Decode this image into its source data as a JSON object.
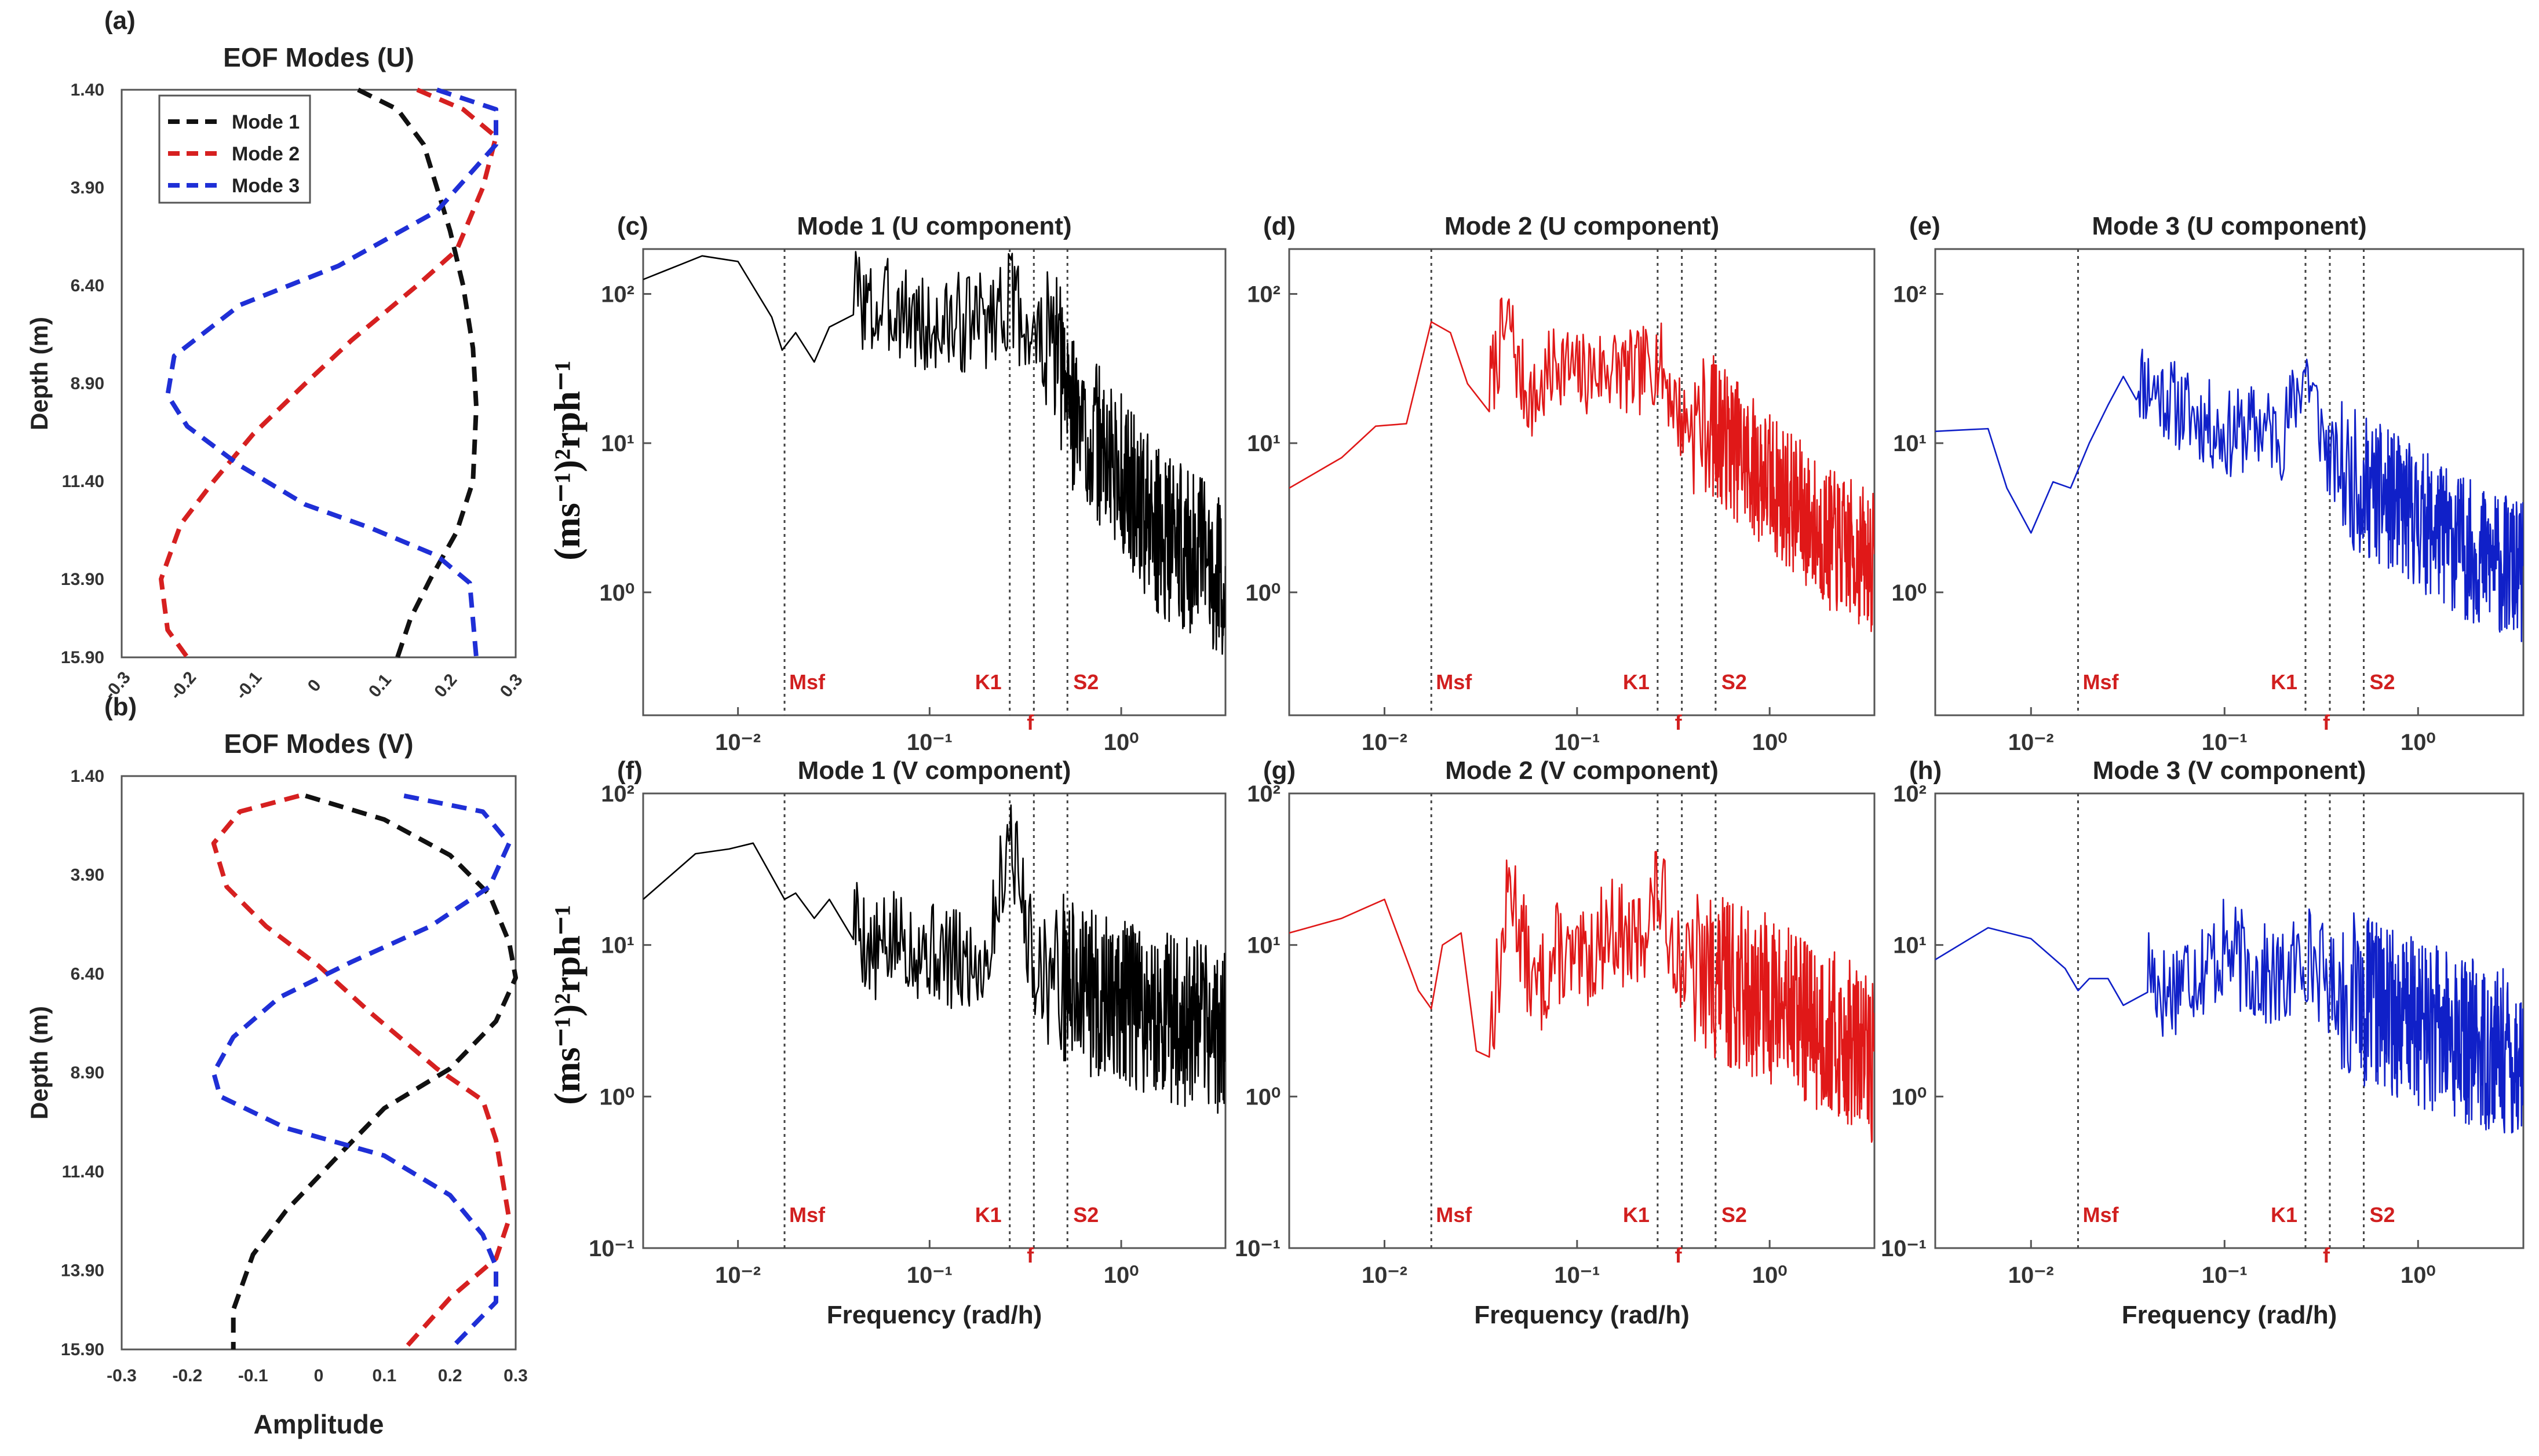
{
  "colors": {
    "mode1": "#111111",
    "mode2": "#d62020",
    "mode3": "#1f2fd6",
    "spec_mode1": "#000000",
    "spec_mode2": "#e01818",
    "spec_mode3": "#1020c8",
    "tide_label": "#d11f1f"
  },
  "ylabel_spectrum": "(ms⁻¹)²rph⁻¹",
  "tide_labels": {
    "msf": "Msf",
    "k1": "K1",
    "f": "f",
    "s2": "S2"
  },
  "chart_data": [
    {
      "id": "a",
      "panel_label": "(a)",
      "type": "line",
      "title": "EOF Modes (U)",
      "xlabel": "",
      "ylabel": "Depth (m)",
      "xlim": [
        -0.3,
        0.3
      ],
      "ylim": [
        1.4,
        15.9
      ],
      "yreversed": true,
      "x_ticks": [
        "-0.3",
        "-0.2",
        "-0.1",
        "0",
        "0.1",
        "0.2",
        "0.3"
      ],
      "y_ticks": [
        "1.40",
        "3.90",
        "6.40",
        "8.90",
        "11.40",
        "13.90",
        "15.90"
      ],
      "legend": {
        "placement": "top-left",
        "entries": [
          "Mode 1",
          "Mode 2",
          "Mode 3"
        ]
      },
      "series": [
        {
          "name": "Mode 1",
          "points": [
            [
              0.06,
              1.4
            ],
            [
              0.12,
              1.9
            ],
            [
              0.16,
              2.8
            ],
            [
              0.18,
              3.9
            ],
            [
              0.2,
              5.0
            ],
            [
              0.22,
              6.4
            ],
            [
              0.235,
              8.0
            ],
            [
              0.24,
              9.5
            ],
            [
              0.235,
              11.4
            ],
            [
              0.21,
              12.7
            ],
            [
              0.17,
              13.9
            ],
            [
              0.14,
              14.9
            ],
            [
              0.12,
              15.9
            ]
          ]
        },
        {
          "name": "Mode 2",
          "points": [
            [
              0.15,
              1.4
            ],
            [
              0.22,
              1.9
            ],
            [
              0.27,
              2.6
            ],
            [
              0.25,
              3.9
            ],
            [
              0.21,
              5.5
            ],
            [
              0.15,
              6.4
            ],
            [
              0.05,
              7.8
            ],
            [
              -0.02,
              8.9
            ],
            [
              -0.1,
              10.2
            ],
            [
              -0.16,
              11.4
            ],
            [
              -0.21,
              12.5
            ],
            [
              -0.24,
              13.9
            ],
            [
              -0.23,
              15.2
            ],
            [
              -0.2,
              15.9
            ]
          ]
        },
        {
          "name": "Mode 3",
          "points": [
            [
              0.18,
              1.4
            ],
            [
              0.27,
              1.9
            ],
            [
              0.27,
              2.8
            ],
            [
              0.18,
              4.5
            ],
            [
              0.03,
              5.9
            ],
            [
              -0.12,
              6.9
            ],
            [
              -0.22,
              8.2
            ],
            [
              -0.23,
              9.2
            ],
            [
              -0.2,
              10.0
            ],
            [
              -0.12,
              11.0
            ],
            [
              -0.02,
              12.0
            ],
            [
              0.08,
              12.6
            ],
            [
              0.18,
              13.3
            ],
            [
              0.23,
              14.0
            ],
            [
              0.24,
              15.9
            ]
          ]
        }
      ]
    },
    {
      "id": "b",
      "panel_label": "(b)",
      "type": "line",
      "title": "EOF Modes (V)",
      "xlabel": "Amplitude",
      "ylabel": "Depth (m)",
      "xlim": [
        -0.3,
        0.3
      ],
      "ylim": [
        1.4,
        15.9
      ],
      "yreversed": true,
      "x_ticks": [
        "-0.3",
        "-0.2",
        "-0.1",
        "0",
        "0.1",
        "0.2",
        "0.3"
      ],
      "y_ticks": [
        "1.40",
        "3.90",
        "6.40",
        "8.90",
        "11.40",
        "13.90",
        "15.90"
      ],
      "series": [
        {
          "name": "Mode 1",
          "points": [
            [
              -0.02,
              1.9
            ],
            [
              0.1,
              2.5
            ],
            [
              0.2,
              3.4
            ],
            [
              0.26,
              4.4
            ],
            [
              0.29,
              5.6
            ],
            [
              0.3,
              6.5
            ],
            [
              0.27,
              7.6
            ],
            [
              0.2,
              8.8
            ],
            [
              0.1,
              9.8
            ],
            [
              0.03,
              11.0
            ],
            [
              -0.05,
              12.4
            ],
            [
              -0.1,
              13.5
            ],
            [
              -0.13,
              14.9
            ],
            [
              -0.13,
              15.9
            ]
          ]
        },
        {
          "name": "Mode 2",
          "points": [
            [
              -0.03,
              1.9
            ],
            [
              -0.12,
              2.3
            ],
            [
              -0.16,
              3.1
            ],
            [
              -0.14,
              4.2
            ],
            [
              -0.08,
              5.2
            ],
            [
              0.0,
              6.2
            ],
            [
              0.08,
              7.4
            ],
            [
              0.18,
              8.8
            ],
            [
              0.25,
              9.6
            ],
            [
              0.27,
              10.6
            ],
            [
              0.28,
              11.6
            ],
            [
              0.29,
              12.6
            ],
            [
              0.27,
              13.6
            ],
            [
              0.2,
              14.6
            ],
            [
              0.13,
              15.9
            ]
          ]
        },
        {
          "name": "Mode 3",
          "points": [
            [
              0.13,
              1.9
            ],
            [
              0.25,
              2.3
            ],
            [
              0.29,
              3.1
            ],
            [
              0.26,
              4.2
            ],
            [
              0.17,
              5.2
            ],
            [
              0.05,
              6.1
            ],
            [
              -0.06,
              7.0
            ],
            [
              -0.13,
              8.0
            ],
            [
              -0.16,
              8.9
            ],
            [
              -0.15,
              9.5
            ],
            [
              -0.05,
              10.3
            ],
            [
              0.1,
              11.0
            ],
            [
              0.2,
              12.0
            ],
            [
              0.25,
              13.0
            ],
            [
              0.27,
              13.8
            ],
            [
              0.27,
              14.7
            ],
            [
              0.2,
              15.9
            ]
          ]
        }
      ]
    },
    {
      "id": "c",
      "panel_label": "(c)",
      "type": "line",
      "title": "Mode 1 (U component)",
      "mode": 1,
      "xlabel": "",
      "xscale": "log",
      "yscale": "log",
      "xlim": [
        0.0032,
        3.5
      ],
      "ylim": [
        0.15,
        200
      ],
      "x_ticks": [
        "10⁻²",
        "10⁻¹",
        "10⁰"
      ],
      "y_ticks": [
        "10⁰",
        "10¹",
        "10²"
      ],
      "tidal_lines": [
        0.0175,
        0.262,
        0.35,
        0.524
      ],
      "key_points": [
        [
          0.0032,
          125
        ],
        [
          0.0065,
          180
        ],
        [
          0.01,
          165
        ],
        [
          0.015,
          70
        ],
        [
          0.017,
          42
        ],
        [
          0.02,
          55
        ],
        [
          0.025,
          35
        ],
        [
          0.03,
          60
        ],
        [
          0.04,
          120
        ],
        [
          0.05,
          80
        ],
        [
          0.07,
          90
        ],
        [
          0.1,
          60
        ],
        [
          0.15,
          70
        ],
        [
          0.2,
          75
        ],
        [
          0.262,
          100
        ],
        [
          0.35,
          55
        ],
        [
          0.45,
          45
        ],
        [
          0.6,
          15
        ],
        [
          1.0,
          7
        ],
        [
          1.5,
          3
        ],
        [
          2.5,
          2
        ],
        [
          3.5,
          1.5
        ]
      ],
      "noise": 0.35,
      "seed": 3
    },
    {
      "id": "d",
      "panel_label": "(d)",
      "type": "line",
      "title": "Mode 2 (U component)",
      "mode": 2,
      "xlabel": "",
      "xscale": "log",
      "yscale": "log",
      "xlim": [
        0.0032,
        3.5
      ],
      "ylim": [
        0.15,
        200
      ],
      "x_ticks": [
        "10⁻²",
        "10⁻¹",
        "10⁰"
      ],
      "y_ticks": [
        "10⁰",
        "10¹",
        "10²"
      ],
      "tidal_lines": [
        0.0175,
        0.262,
        0.35,
        0.524
      ],
      "key_points": [
        [
          0.0032,
          5
        ],
        [
          0.006,
          8
        ],
        [
          0.009,
          13
        ],
        [
          0.013,
          13.5
        ],
        [
          0.0175,
          65
        ],
        [
          0.022,
          55
        ],
        [
          0.027,
          25
        ],
        [
          0.035,
          25
        ],
        [
          0.04,
          50
        ],
        [
          0.045,
          70
        ],
        [
          0.05,
          30
        ],
        [
          0.06,
          20
        ],
        [
          0.08,
          40
        ],
        [
          0.1,
          30
        ],
        [
          0.15,
          35
        ],
        [
          0.2,
          30
        ],
        [
          0.262,
          40
        ],
        [
          0.35,
          15
        ],
        [
          0.5,
          15
        ],
        [
          0.8,
          8
        ],
        [
          1.2,
          5
        ],
        [
          2,
          2.5
        ],
        [
          3.5,
          1.8
        ]
      ],
      "noise": 0.3,
      "seed": 7
    },
    {
      "id": "e",
      "panel_label": "(e)",
      "type": "line",
      "title": "Mode 3 (U component)",
      "mode": 3,
      "xlabel": "",
      "xscale": "log",
      "yscale": "log",
      "xlim": [
        0.0032,
        3.5
      ],
      "ylim": [
        0.15,
        200
      ],
      "x_ticks": [
        "10⁻²",
        "10⁻¹",
        "10⁰"
      ],
      "y_ticks": [
        "10⁰",
        "10¹",
        "10²"
      ],
      "tidal_lines": [
        0.0175,
        0.262,
        0.35,
        0.524
      ],
      "key_points": [
        [
          0.0032,
          12
        ],
        [
          0.006,
          12.5
        ],
        [
          0.0075,
          5
        ],
        [
          0.01,
          2.5
        ],
        [
          0.013,
          5.5
        ],
        [
          0.016,
          5
        ],
        [
          0.02,
          10
        ],
        [
          0.025,
          18
        ],
        [
          0.03,
          28
        ],
        [
          0.035,
          30
        ],
        [
          0.05,
          22
        ],
        [
          0.06,
          18
        ],
        [
          0.08,
          15
        ],
        [
          0.1,
          12
        ],
        [
          0.15,
          14
        ],
        [
          0.2,
          12
        ],
        [
          0.262,
          35
        ],
        [
          0.35,
          8
        ],
        [
          0.5,
          6
        ],
        [
          1.0,
          3.5
        ],
        [
          2.0,
          2
        ],
        [
          3.5,
          1.5
        ]
      ],
      "noise": 0.3,
      "seed": 11
    },
    {
      "id": "f",
      "panel_label": "(f)",
      "type": "line",
      "title": "Mode 1 (V component)",
      "mode": 1,
      "xlabel": "Frequency (rad/h)",
      "xscale": "log",
      "yscale": "log",
      "xlim": [
        0.0032,
        3.5
      ],
      "ylim": [
        0.1,
        100
      ],
      "x_ticks": [
        "10⁻²",
        "10⁻¹",
        "10⁰"
      ],
      "y_ticks": [
        "10⁻¹",
        "10⁰",
        "10¹",
        "10²"
      ],
      "tidal_lines": [
        0.0175,
        0.262,
        0.35,
        0.524
      ],
      "key_points": [
        [
          0.0032,
          20
        ],
        [
          0.006,
          40
        ],
        [
          0.009,
          43
        ],
        [
          0.012,
          47
        ],
        [
          0.0175,
          20
        ],
        [
          0.02,
          22
        ],
        [
          0.025,
          15
        ],
        [
          0.03,
          20
        ],
        [
          0.04,
          18
        ],
        [
          0.05,
          9
        ],
        [
          0.07,
          12
        ],
        [
          0.1,
          10
        ],
        [
          0.15,
          8
        ],
        [
          0.2,
          9
        ],
        [
          0.262,
          65
        ],
        [
          0.35,
          8
        ],
        [
          0.5,
          7
        ],
        [
          0.8,
          5
        ],
        [
          1.5,
          4
        ],
        [
          3.5,
          3
        ]
      ],
      "noise": 0.35,
      "seed": 5
    },
    {
      "id": "g",
      "panel_label": "(g)",
      "type": "line",
      "title": "Mode 2 (V component)",
      "mode": 2,
      "xlabel": "Frequency (rad/h)",
      "xscale": "log",
      "yscale": "log",
      "xlim": [
        0.0032,
        3.5
      ],
      "ylim": [
        0.1,
        100
      ],
      "x_ticks": [
        "10⁻²",
        "10⁻¹",
        "10⁰"
      ],
      "y_ticks": [
        "10⁻¹",
        "10⁰",
        "10¹",
        "10²"
      ],
      "tidal_lines": [
        0.0175,
        0.262,
        0.35,
        0.524
      ],
      "key_points": [
        [
          0.0032,
          12
        ],
        [
          0.006,
          15
        ],
        [
          0.01,
          20
        ],
        [
          0.015,
          5
        ],
        [
          0.0175,
          3.8
        ],
        [
          0.02,
          10
        ],
        [
          0.025,
          12
        ],
        [
          0.03,
          2
        ],
        [
          0.035,
          3
        ],
        [
          0.04,
          8
        ],
        [
          0.045,
          30
        ],
        [
          0.05,
          15
        ],
        [
          0.06,
          5
        ],
        [
          0.08,
          10
        ],
        [
          0.1,
          7
        ],
        [
          0.15,
          15
        ],
        [
          0.2,
          10
        ],
        [
          0.262,
          25
        ],
        [
          0.35,
          8
        ],
        [
          0.5,
          7
        ],
        [
          1.0,
          5
        ],
        [
          2,
          3
        ],
        [
          3.5,
          2
        ]
      ],
      "noise": 0.35,
      "seed": 13
    },
    {
      "id": "h",
      "panel_label": "(h)",
      "type": "line",
      "title": "Mode 3 (V component)",
      "mode": 3,
      "xlabel": "Frequency (rad/h)",
      "xscale": "log",
      "yscale": "log",
      "xlim": [
        0.0032,
        3.5
      ],
      "ylim": [
        0.1,
        100
      ],
      "x_ticks": [
        "10⁻²",
        "10⁻¹",
        "10⁰"
      ],
      "y_ticks": [
        "10⁻¹",
        "10⁰",
        "10¹",
        "10²"
      ],
      "tidal_lines": [
        0.0175,
        0.262,
        0.35,
        0.524
      ],
      "key_points": [
        [
          0.0032,
          8
        ],
        [
          0.006,
          13
        ],
        [
          0.01,
          11
        ],
        [
          0.015,
          7
        ],
        [
          0.0175,
          5
        ],
        [
          0.02,
          6
        ],
        [
          0.025,
          6
        ],
        [
          0.03,
          4
        ],
        [
          0.04,
          8
        ],
        [
          0.05,
          5
        ],
        [
          0.06,
          7
        ],
        [
          0.08,
          8
        ],
        [
          0.1,
          10
        ],
        [
          0.15,
          7
        ],
        [
          0.2,
          6
        ],
        [
          0.262,
          10
        ],
        [
          0.35,
          6
        ],
        [
          0.5,
          5
        ],
        [
          1.0,
          3.5
        ],
        [
          2,
          2.5
        ],
        [
          3.5,
          2
        ]
      ],
      "noise": 0.35,
      "seed": 17
    }
  ]
}
